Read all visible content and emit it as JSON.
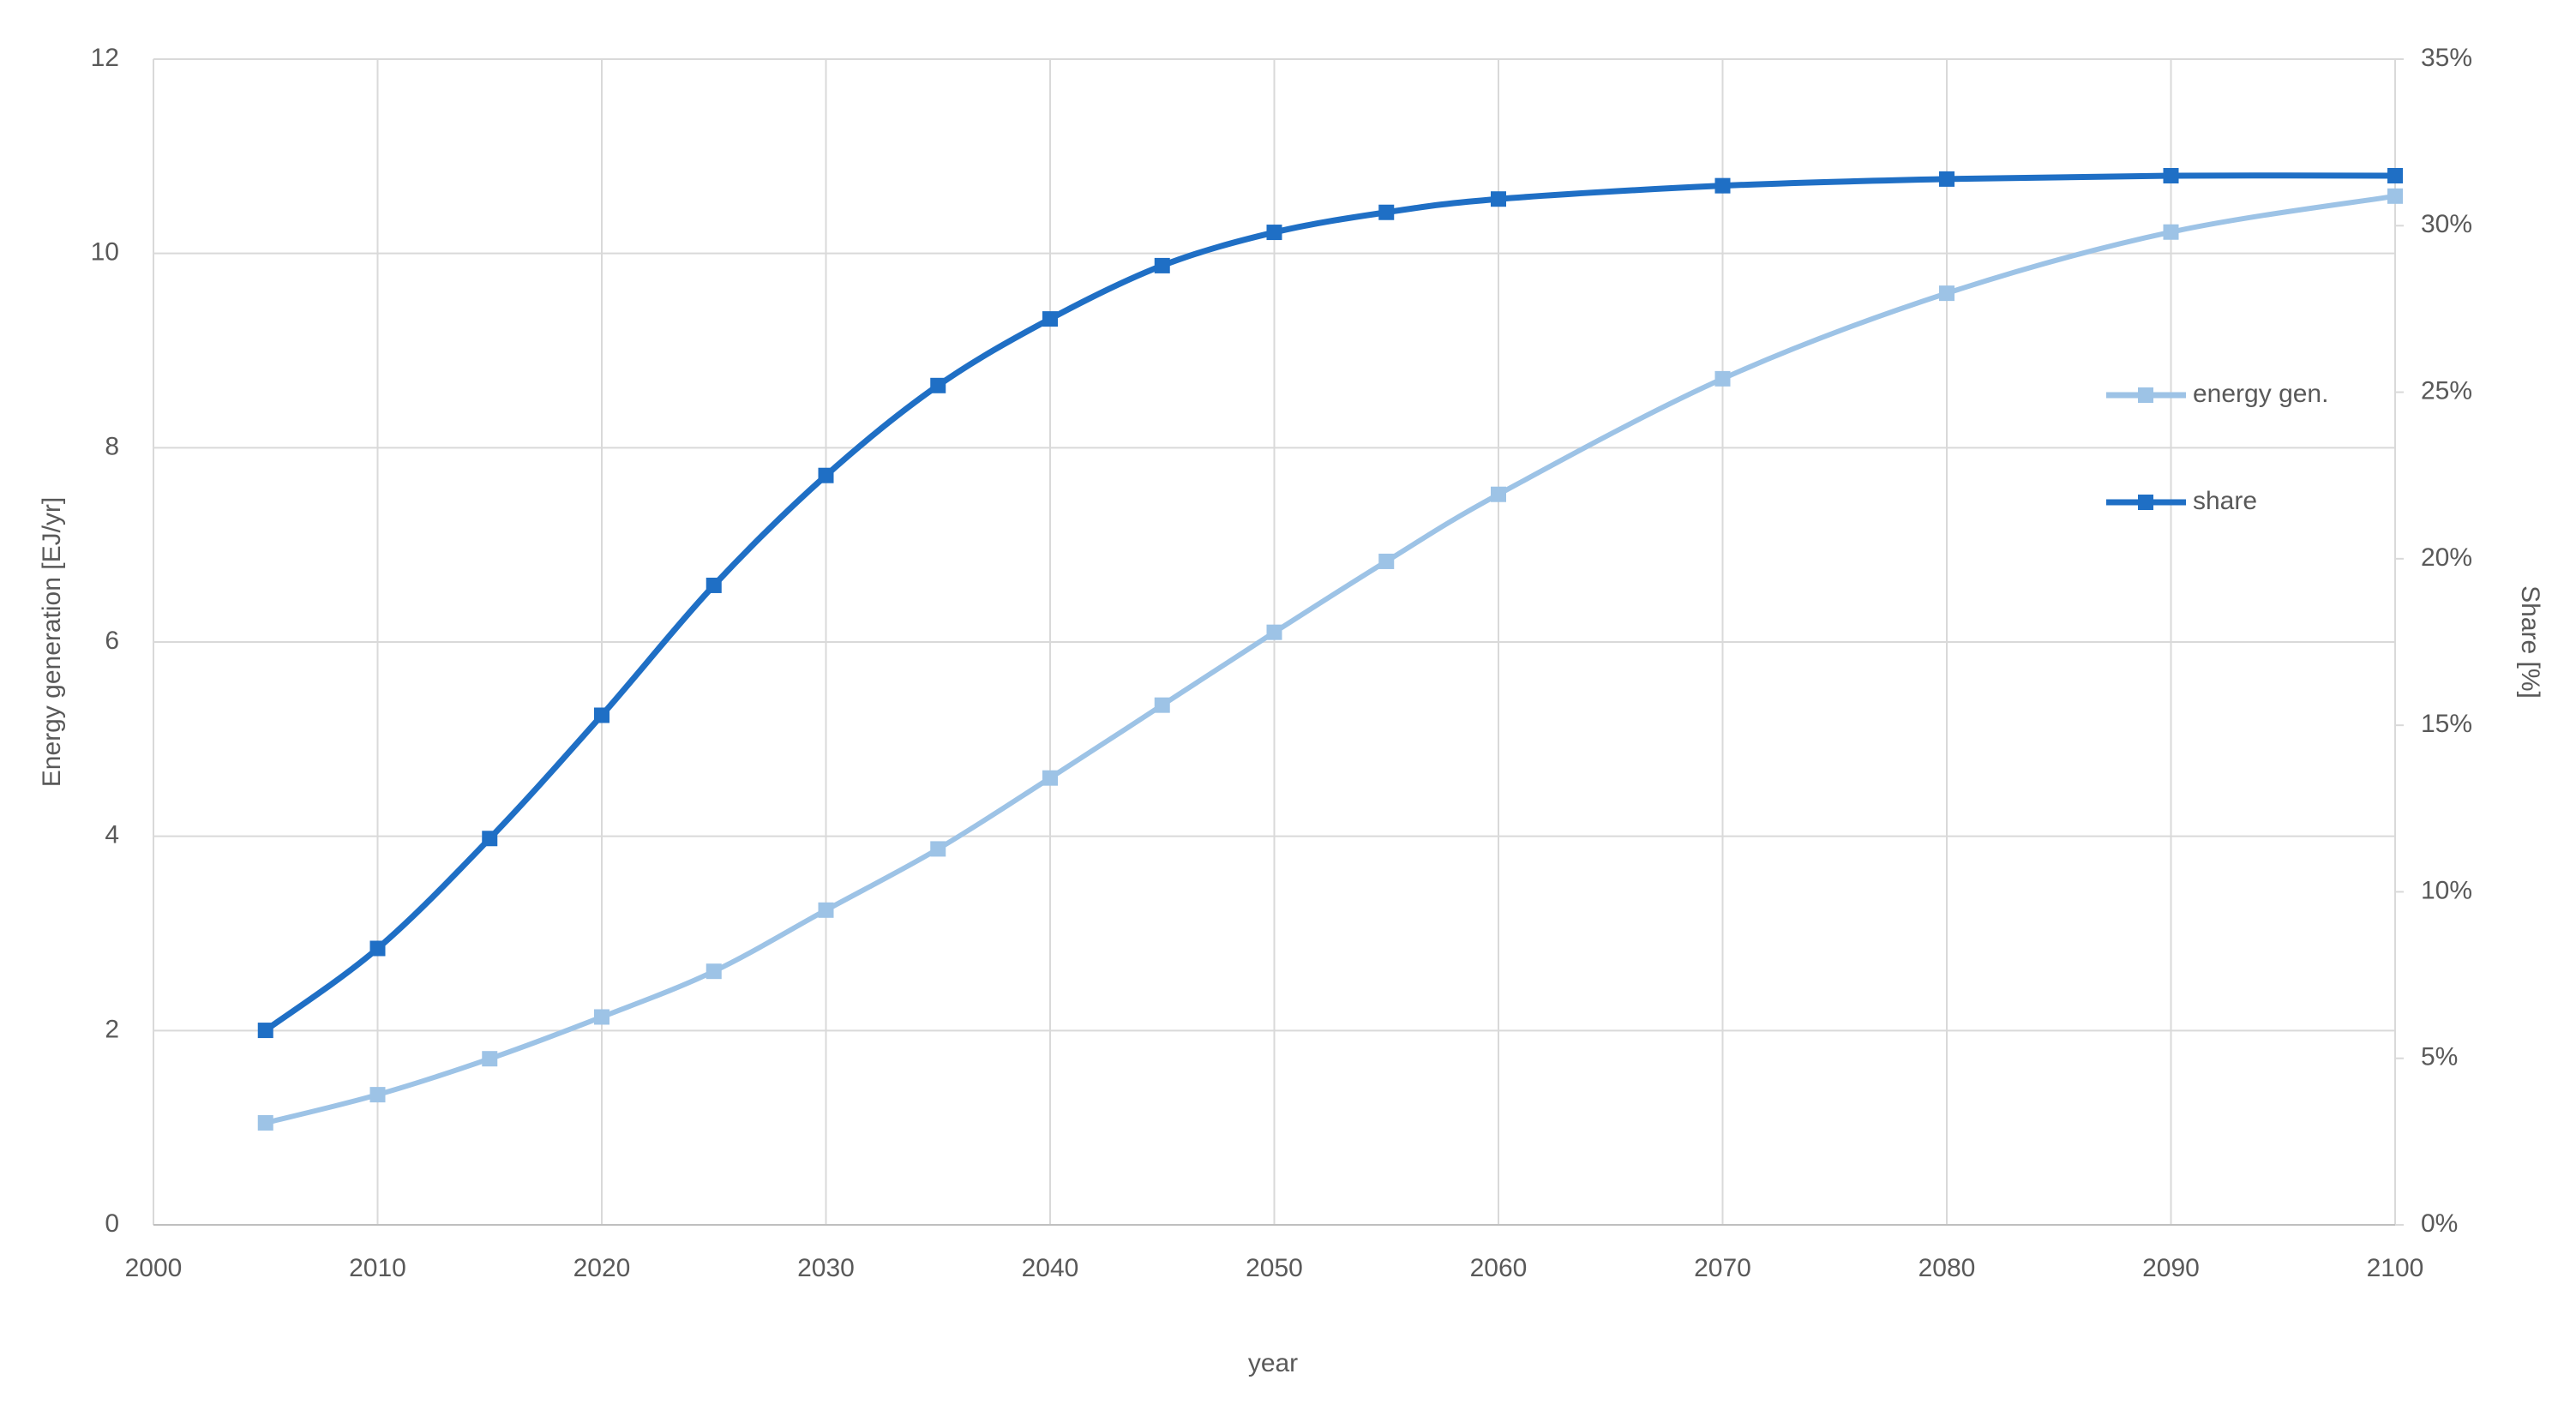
{
  "chart_data": {
    "type": "line",
    "x": [
      2005,
      2010,
      2015,
      2020,
      2025,
      2030,
      2035,
      2040,
      2045,
      2050,
      2055,
      2060,
      2070,
      2080,
      2090,
      2100
    ],
    "series": [
      {
        "name": "energy gen.",
        "color": "#9dc3e6",
        "axis": "y",
        "values": [
          1.05,
          1.34,
          1.71,
          2.14,
          2.61,
          3.24,
          3.87,
          4.6,
          5.35,
          6.1,
          6.83,
          7.52,
          8.71,
          9.59,
          10.22,
          10.59
        ]
      },
      {
        "name": "share",
        "color": "#1f6fc5",
        "axis": "y2",
        "values": [
          5.84,
          8.3,
          11.6,
          15.3,
          19.2,
          22.5,
          25.2,
          27.2,
          28.8,
          29.8,
          30.4,
          30.8,
          31.2,
          31.4,
          31.5,
          31.5
        ]
      }
    ],
    "xlabel": "year",
    "ylabel": "Energy generation [EJ/yr]",
    "y2label": "Share [%]",
    "xlim": [
      2000,
      2100
    ],
    "xticks": [
      2000,
      2010,
      2020,
      2030,
      2040,
      2050,
      2060,
      2070,
      2080,
      2090,
      2100
    ],
    "ylim": [
      0,
      12
    ],
    "yticks": [
      0,
      2,
      4,
      6,
      8,
      10,
      12
    ],
    "y2lim": [
      0,
      35
    ],
    "y2ticks": [
      {
        "value": 0,
        "label": "0%"
      },
      {
        "value": 5,
        "label": "5%"
      },
      {
        "value": 10,
        "label": "10%"
      },
      {
        "value": 15,
        "label": "15%"
      },
      {
        "value": 20,
        "label": "20%"
      },
      {
        "value": 25,
        "label": "25%"
      },
      {
        "value": 30,
        "label": "30%"
      },
      {
        "value": 35,
        "label": "35%"
      }
    ],
    "grid": true,
    "legend": "right"
  }
}
